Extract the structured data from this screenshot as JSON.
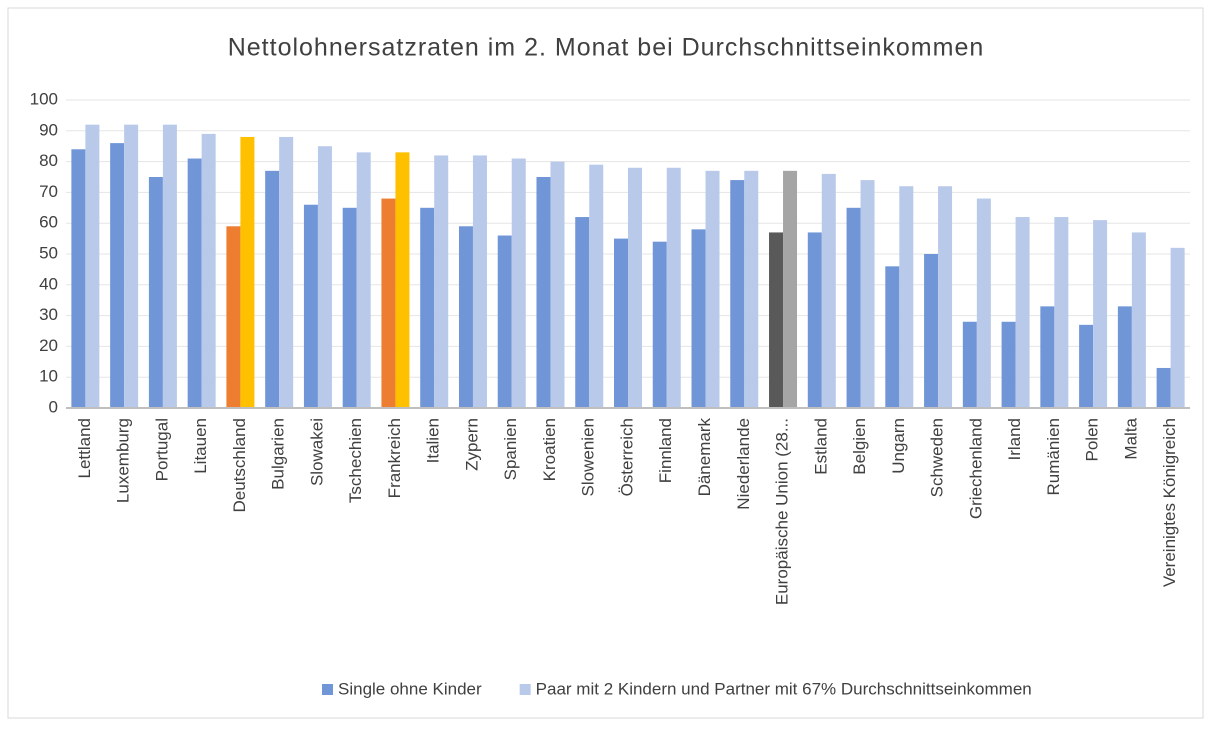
{
  "chart_data": {
    "type": "bar",
    "title": "Nettolohnersatzraten im 2. Monat bei Durchschnittseinkommen",
    "categories": [
      "Lettland",
      "Luxemburg",
      "Portugal",
      "Litauen",
      "Deutschland",
      "Bulgarien",
      "Slowakei",
      "Tschechien",
      "Frankreich",
      "Italien",
      "Zypern",
      "Spanien",
      "Kroatien",
      "Slowenien",
      "Österreich",
      "Finnland",
      "Dänemark",
      "Niederlande",
      "Europäische Union (28...",
      "Estland",
      "Belgien",
      "Ungarn",
      "Schweden",
      "Griechenland",
      "Irland",
      "Rumänien",
      "Polen",
      "Malta",
      "Vereinigtes Königreich"
    ],
    "series": [
      {
        "name": "Single ohne Kinder",
        "color": "#7096d8",
        "values": [
          84,
          86,
          75,
          81,
          59,
          77,
          66,
          65,
          68,
          65,
          59,
          56,
          75,
          62,
          55,
          54,
          58,
          74,
          57,
          57,
          65,
          46,
          50,
          28,
          28,
          33,
          27,
          33,
          13
        ],
        "colors": [
          "#7096d8",
          "#7096d8",
          "#7096d8",
          "#7096d8",
          "#ed7d31",
          "#7096d8",
          "#7096d8",
          "#7096d8",
          "#ed7d31",
          "#7096d8",
          "#7096d8",
          "#7096d8",
          "#7096d8",
          "#7096d8",
          "#7096d8",
          "#7096d8",
          "#7096d8",
          "#7096d8",
          "#595959",
          "#7096d8",
          "#7096d8",
          "#7096d8",
          "#7096d8",
          "#7096d8",
          "#7096d8",
          "#7096d8",
          "#7096d8",
          "#7096d8",
          "#7096d8"
        ]
      },
      {
        "name": "Paar mit 2 Kindern und Partner mit 67% Durchschnittseinkommen",
        "color": "#b9c9ea",
        "values": [
          92,
          92,
          92,
          89,
          88,
          88,
          85,
          83,
          83,
          82,
          82,
          81,
          80,
          79,
          78,
          78,
          77,
          77,
          77,
          76,
          74,
          72,
          72,
          68,
          62,
          62,
          61,
          57,
          52
        ],
        "colors": [
          "#b9c9ea",
          "#b9c9ea",
          "#b9c9ea",
          "#b9c9ea",
          "#ffc000",
          "#b9c9ea",
          "#b9c9ea",
          "#b9c9ea",
          "#ffc000",
          "#b9c9ea",
          "#b9c9ea",
          "#b9c9ea",
          "#b9c9ea",
          "#b9c9ea",
          "#b9c9ea",
          "#b9c9ea",
          "#b9c9ea",
          "#b9c9ea",
          "#a5a5a5",
          "#b9c9ea",
          "#b9c9ea",
          "#b9c9ea",
          "#b9c9ea",
          "#b9c9ea",
          "#b9c9ea",
          "#b9c9ea",
          "#b9c9ea",
          "#b9c9ea",
          "#b9c9ea"
        ]
      }
    ],
    "ylim": [
      0,
      100
    ],
    "yticks": [
      0,
      10,
      20,
      30,
      40,
      50,
      60,
      70,
      80,
      90,
      100
    ],
    "grid": true,
    "legend": "bottom"
  }
}
